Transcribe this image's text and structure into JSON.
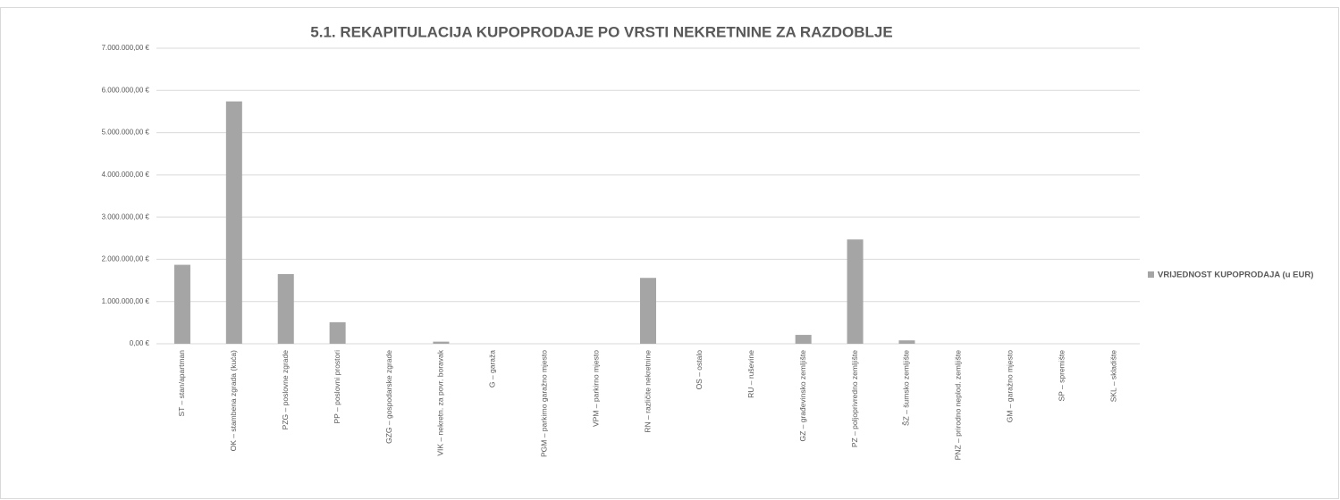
{
  "chart_data": {
    "type": "bar",
    "title": "5.1. REKAPITULACIJA KUPOPRODAJE PO VRSTI NEKRETNINE ZA RAZDOBLJE",
    "categories": [
      "ST – stan/apartman",
      "OK – stambena zgrada (kuća)",
      "PZG – poslovne zgrade",
      "PP – poslovni prostori",
      "GZG – gospodarske zgrade",
      "VIK – nekretn. za povr. boravak",
      "G – garaža",
      "PGM – parkirno garažno mjesto",
      "VPM – parkirno mjesto",
      "RN – različite nekretnine",
      "OS – ostalo",
      "RU – ruševine",
      "GZ – građevinsko zemljište",
      "PZ – poljoprivredno zemljište",
      "ŠZ – šumsko zemljište",
      "PNZ – prirodno neplod. zemljište",
      "GM – garažno mjesto",
      "SP – spremište",
      "SKL – skladište"
    ],
    "series": [
      {
        "name": "VRIJEDNOST KUPOPRODAJA (u EUR)",
        "color": "#a5a5a5",
        "values": [
          1870000,
          5740000,
          1650000,
          510000,
          0,
          50000,
          0,
          0,
          0,
          1560000,
          0,
          0,
          210000,
          2470000,
          80000,
          0,
          0,
          0,
          0
        ]
      }
    ],
    "ylim": [
      0,
      7000000
    ],
    "yticks": [
      {
        "value": 0,
        "label": "0,00 €"
      },
      {
        "value": 1000000,
        "label": "1.000.000,00 €"
      },
      {
        "value": 2000000,
        "label": "2.000.000,00 €"
      },
      {
        "value": 3000000,
        "label": "3.000.000,00 €"
      },
      {
        "value": 4000000,
        "label": "4.000.000,00 €"
      },
      {
        "value": 5000000,
        "label": "5.000.000,00 €"
      },
      {
        "value": 6000000,
        "label": "6.000.000,00 €"
      },
      {
        "value": 7000000,
        "label": "7.000.000,00 €"
      }
    ],
    "grid": true,
    "legend": "right"
  }
}
